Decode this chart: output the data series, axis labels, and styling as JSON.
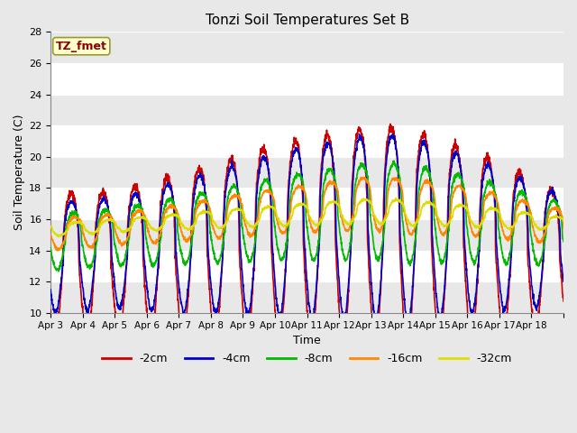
{
  "title": "Tonzi Soil Temperatures Set B",
  "xlabel": "Time",
  "ylabel": "Soil Temperature (C)",
  "ylim": [
    10,
    28
  ],
  "yticks": [
    10,
    12,
    14,
    16,
    18,
    20,
    22,
    24,
    26,
    28
  ],
  "annotation": "TZ_fmet",
  "annotation_color": "#8B0000",
  "annotation_bg": "#FFFFCC",
  "background_color": "#E8E8E8",
  "plot_bg": "#FFFFFF",
  "grid_color": "#CCCCCC",
  "band_color": "#E8E8E8",
  "lines": [
    {
      "label": "-2cm",
      "color": "#CC0000",
      "lw": 1.2
    },
    {
      "label": "-4cm",
      "color": "#0000CC",
      "lw": 1.2
    },
    {
      "label": "-8cm",
      "color": "#00BB00",
      "lw": 1.2
    },
    {
      "label": "-16cm",
      "color": "#FF8800",
      "lw": 1.2
    },
    {
      "label": "-32cm",
      "color": "#DDDD00",
      "lw": 1.2
    }
  ],
  "xtick_labels": [
    "Apr 3",
    "Apr 4",
    "Apr 5",
    "Apr 6",
    "Apr 7",
    "Apr 8",
    "Apr 9",
    "Apr 10",
    "Apr 11",
    "Apr 12",
    "Apr 13",
    "Apr 14",
    "Apr 15",
    "Apr 16",
    "Apr 17",
    "Apr 18"
  ],
  "n_days": 16,
  "pts_per_day": 144,
  "figsize": [
    6.4,
    4.8
  ],
  "dpi": 100
}
